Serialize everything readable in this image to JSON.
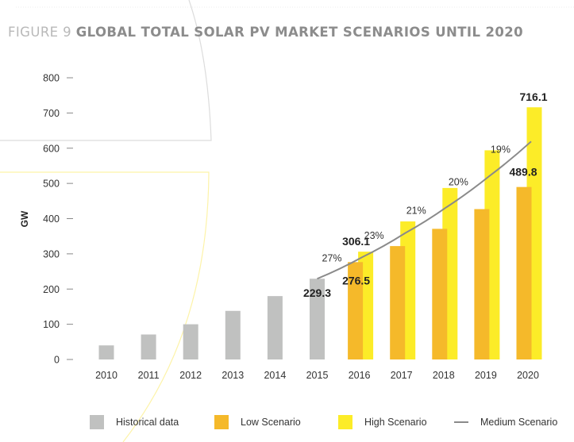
{
  "figure": {
    "prefix": "FIGURE 9",
    "title": "GLOBAL TOTAL SOLAR PV MARKET SCENARIOS UNTIL 2020"
  },
  "legend": [
    {
      "key": "historical",
      "label": "Historical data",
      "kind": "box"
    },
    {
      "key": "low",
      "label": "Low Scenario",
      "kind": "box"
    },
    {
      "key": "high",
      "label": "High Scenario",
      "kind": "box"
    },
    {
      "key": "medium",
      "label": "Medium Scenario",
      "kind": "line"
    }
  ],
  "colors": {
    "historical": "#c0c1c0",
    "low": "#f5b92a",
    "high": "#fcec28",
    "medium": "#8a8a8a",
    "deco_gray": "#dcdcdc",
    "deco_yellow": "#fdf3a8"
  },
  "chart_data": {
    "type": "bar",
    "title": "GLOBAL TOTAL SOLAR PV MARKET SCENARIOS UNTIL 2020",
    "xlabel": "",
    "ylabel": "GW",
    "ylim": [
      0,
      800
    ],
    "yticks": [
      0,
      100,
      200,
      300,
      400,
      500,
      600,
      700,
      800
    ],
    "grid": false,
    "legend_position": "bottom",
    "categories": [
      "2010",
      "2011",
      "2012",
      "2013",
      "2014",
      "2015",
      "2016",
      "2017",
      "2018",
      "2019",
      "2020"
    ],
    "series": [
      {
        "name": "Historical data",
        "key": "historical",
        "type": "bar",
        "values": [
          40,
          71,
          100,
          138,
          180,
          229.3,
          null,
          null,
          null,
          null,
          null
        ]
      },
      {
        "name": "Low Scenario",
        "key": "low",
        "type": "bar",
        "values": [
          null,
          null,
          null,
          null,
          null,
          null,
          276.5,
          322,
          371,
          427,
          489.8
        ]
      },
      {
        "name": "High Scenario",
        "key": "high",
        "type": "bar",
        "values": [
          null,
          null,
          null,
          null,
          null,
          null,
          306.1,
          392,
          487,
          594,
          716.1
        ]
      },
      {
        "name": "Medium Scenario",
        "key": "medium",
        "type": "line",
        "values": [
          null,
          null,
          null,
          null,
          null,
          229.3,
          291,
          358,
          433,
          520,
          619
        ]
      }
    ],
    "data_labels": [
      {
        "category": "2015",
        "series": "historical",
        "text": "229.3"
      },
      {
        "category": "2016",
        "series": "low",
        "text": "276.5"
      },
      {
        "category": "2016",
        "series": "high",
        "text": "306.1"
      },
      {
        "category": "2020",
        "series": "low",
        "text": "489.8"
      },
      {
        "category": "2020",
        "series": "high",
        "text": "716.1"
      }
    ],
    "growth_annotations": [
      {
        "between": [
          "2015",
          "2016"
        ],
        "text": "27%"
      },
      {
        "between": [
          "2016",
          "2017"
        ],
        "text": "23%"
      },
      {
        "between": [
          "2017",
          "2018"
        ],
        "text": "21%"
      },
      {
        "between": [
          "2018",
          "2019"
        ],
        "text": "20%"
      },
      {
        "between": [
          "2019",
          "2020"
        ],
        "text": "19%"
      }
    ]
  }
}
